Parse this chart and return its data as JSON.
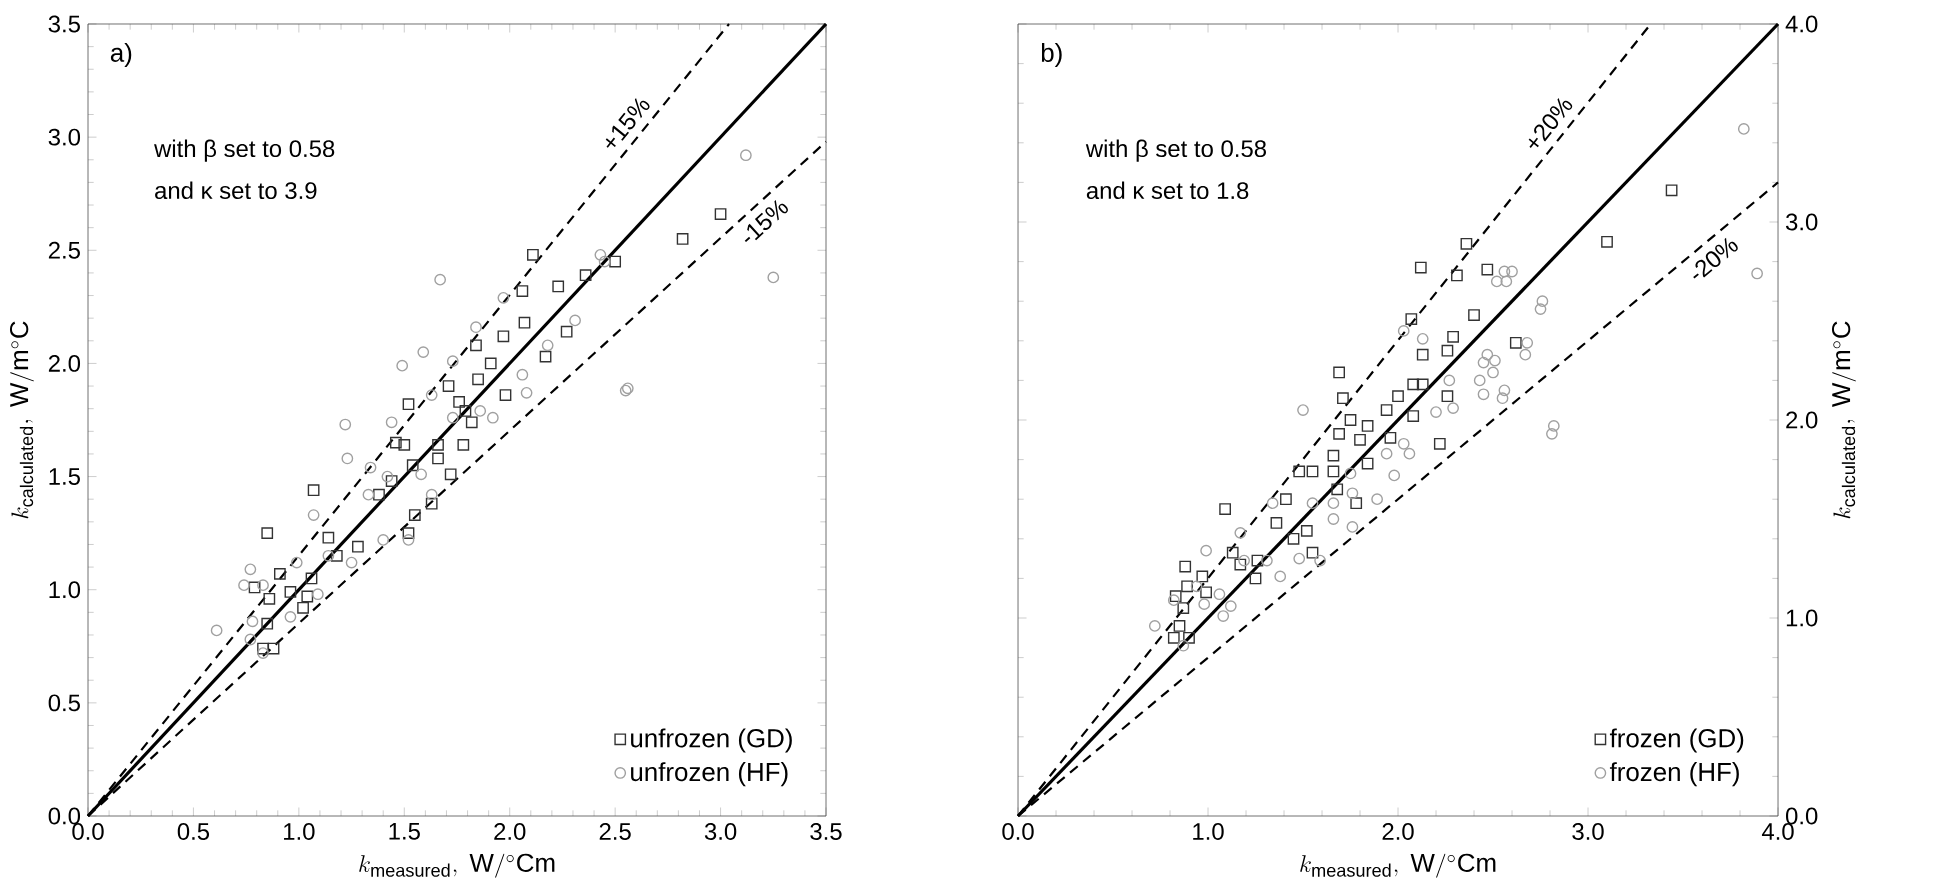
{
  "chart_data": [
    {
      "type": "scatter",
      "xlabel": "k_{\\mathrm{measured}}\\mathrm{,\\ W/^{\\circ}Cm}",
      "ylabel": "k_{\\mathrm{calculated}}\\mathrm{,\\ W/m^{\\circ}C}",
      "annotations": [
        "a)",
        "with β set to 0.58",
        "and κ set to 3.9",
        "+15%",
        "-15%"
      ],
      "xlim": [
        0,
        3.5
      ],
      "ylim": [
        0,
        3.5
      ],
      "xticks": [
        {
          "value": 0,
          "label": "0.0"
        },
        {
          "value": 0.5,
          "label": "0.5"
        },
        {
          "value": 1,
          "label": "1.0"
        },
        {
          "value": 1.5,
          "label": "1.5"
        },
        {
          "value": 2,
          "label": "2.0"
        },
        {
          "value": 2.5,
          "label": "2.5"
        },
        {
          "value": 3,
          "label": "3.0"
        },
        {
          "value": 3.5,
          "label": "3.5"
        }
      ],
      "yticks": [
        {
          "value": 0,
          "label": "0.0"
        },
        {
          "value": 0.5,
          "label": "0.5"
        },
        {
          "value": 1,
          "label": "1.0"
        },
        {
          "value": 1.5,
          "label": "1.5"
        },
        {
          "value": 2,
          "label": "2.0"
        },
        {
          "value": 2.5,
          "label": "2.5"
        },
        {
          "value": 3,
          "label": "3.0"
        },
        {
          "value": 3.5,
          "label": "3.5"
        }
      ],
      "legend": "bottom right",
      "series": [
        {
          "type": "line",
          "color": "#000000",
          "line_style": "solid",
          "marker": "none",
          "x": [
            0,
            3.5
          ],
          "values": [
            0,
            3.5
          ]
        },
        {
          "type": "line",
          "color": "#000000",
          "line_style": "dashed",
          "marker": "none",
          "x": [
            0,
            3.04
          ],
          "values": [
            0,
            3.5
          ]
        },
        {
          "type": "line",
          "color": "#000000",
          "line_style": "dashed",
          "marker": "none",
          "x": [
            0,
            3.5
          ],
          "values": [
            0,
            2.98
          ]
        },
        {
          "name": "unfrozen (GD)",
          "marker": "square",
          "color": "#333333",
          "x": [
            2.11,
            2.06,
            2.23,
            2.36,
            2.07,
            1.97,
            2.27,
            2.17,
            1.84,
            1.91,
            1.85,
            1.98,
            1.71,
            1.76,
            1.79,
            1.82,
            1.52,
            1.46,
            1.5,
            1.66,
            1.78,
            1.54,
            1.66,
            1.72,
            1.07,
            1.38,
            1.44,
            1.55,
            1.63,
            1.52,
            0.85,
            1.14,
            1.28,
            1.18,
            1.06,
            0.91,
            0.79,
            0.96,
            0.86,
            1.04,
            1.02,
            0.85,
            0.88,
            0.83,
            2.82,
            3.0,
            2.5
          ],
          "values": [
            2.48,
            2.32,
            2.34,
            2.39,
            2.18,
            2.12,
            2.14,
            2.03,
            2.08,
            2.0,
            1.93,
            1.86,
            1.9,
            1.83,
            1.79,
            1.74,
            1.82,
            1.65,
            1.64,
            1.64,
            1.64,
            1.55,
            1.58,
            1.51,
            1.44,
            1.42,
            1.48,
            1.33,
            1.38,
            1.25,
            1.25,
            1.23,
            1.19,
            1.15,
            1.05,
            1.07,
            1.01,
            0.99,
            0.96,
            0.97,
            0.92,
            0.85,
            0.74,
            0.74,
            2.55,
            2.66,
            2.45
          ]
        },
        {
          "name": "unfrozen (HF)",
          "marker": "circle",
          "color": "#a0a0a0",
          "x": [
            1.67,
            2.43,
            1.97,
            1.84,
            1.59,
            1.49,
            1.73,
            1.63,
            1.44,
            1.22,
            1.23,
            1.73,
            1.92,
            2.06,
            2.08,
            2.31,
            2.56,
            1.34,
            1.42,
            1.33,
            1.58,
            1.63,
            1.07,
            1.4,
            1.52,
            1.25,
            0.77,
            0.99,
            0.74,
            0.83,
            1.09,
            0.61,
            0.78,
            0.96,
            0.77,
            0.83,
            1.14,
            1.86,
            2.18,
            2.55,
            3.12,
            3.25,
            2.45
          ],
          "values": [
            2.37,
            2.48,
            2.29,
            2.16,
            2.05,
            1.99,
            2.01,
            1.86,
            1.74,
            1.73,
            1.58,
            1.76,
            1.76,
            1.95,
            1.87,
            2.19,
            1.89,
            1.54,
            1.5,
            1.42,
            1.51,
            1.42,
            1.33,
            1.22,
            1.22,
            1.12,
            1.09,
            1.12,
            1.02,
            1.02,
            0.98,
            0.82,
            0.86,
            0.88,
            0.78,
            0.72,
            1.15,
            1.79,
            2.08,
            1.88,
            2.92,
            2.38,
            2.45
          ]
        }
      ]
    },
    {
      "type": "scatter",
      "xlabel": "k_{\\mathrm{measured}}\\mathrm{,\\ W/^{\\circ}Cm}",
      "ylabel": "k_{\\mathrm{calculated}}\\mathrm{,\\ W/m^{\\circ}C}",
      "annotations": [
        "b)",
        "with β set to 0.58",
        "and κ set to 1.8",
        "+20%",
        "-20%"
      ],
      "xlim": [
        0,
        4
      ],
      "ylim": [
        0,
        4
      ],
      "xticks": [
        {
          "value": 0,
          "label": "0.0"
        },
        {
          "value": 1,
          "label": "1.0"
        },
        {
          "value": 2,
          "label": "2.0"
        },
        {
          "value": 3,
          "label": "3.0"
        },
        {
          "value": 4,
          "label": "4.0"
        }
      ],
      "yticks": [
        {
          "value": 0,
          "label": "0.0"
        },
        {
          "value": 1,
          "label": "1.0"
        },
        {
          "value": 2,
          "label": "2.0"
        },
        {
          "value": 3,
          "label": "3.0"
        },
        {
          "value": 4,
          "label": "4.0"
        }
      ],
      "legend": "bottom right",
      "series": [
        {
          "type": "line",
          "color": "#000000",
          "line_style": "solid",
          "marker": "none",
          "x": [
            0,
            4
          ],
          "values": [
            0,
            4
          ]
        },
        {
          "type": "line",
          "color": "#000000",
          "line_style": "dashed",
          "marker": "none",
          "x": [
            0,
            3.33
          ],
          "values": [
            0,
            4
          ]
        },
        {
          "type": "line",
          "color": "#000000",
          "line_style": "dashed",
          "marker": "none",
          "x": [
            0,
            4
          ],
          "values": [
            0,
            3.2
          ]
        },
        {
          "name": "frozen (GD)",
          "marker": "square",
          "color": "#333333",
          "x": [
            2.36,
            2.12,
            2.31,
            2.47,
            2.07,
            2.4,
            2.29,
            2.62,
            2.13,
            2.26,
            1.69,
            2.08,
            2.13,
            2.26,
            2.0,
            1.71,
            1.94,
            1.75,
            2.08,
            1.84,
            1.69,
            1.8,
            1.96,
            2.22,
            1.66,
            1.84,
            1.48,
            1.55,
            1.66,
            1.68,
            1.41,
            1.78,
            1.09,
            1.36,
            1.52,
            1.45,
            1.55,
            1.13,
            1.26,
            1.17,
            1.25,
            0.88,
            0.97,
            0.89,
            0.99,
            0.83,
            0.87,
            0.85,
            0.82,
            0.9,
            3.44,
            3.1
          ],
          "values": [
            2.89,
            2.77,
            2.73,
            2.76,
            2.51,
            2.53,
            2.42,
            2.39,
            2.33,
            2.35,
            2.24,
            2.18,
            2.18,
            2.12,
            2.12,
            2.11,
            2.05,
            2.0,
            2.02,
            1.97,
            1.93,
            1.9,
            1.91,
            1.88,
            1.82,
            1.78,
            1.74,
            1.74,
            1.74,
            1.65,
            1.6,
            1.58,
            1.55,
            1.48,
            1.44,
            1.4,
            1.33,
            1.33,
            1.29,
            1.27,
            1.2,
            1.26,
            1.21,
            1.16,
            1.13,
            1.11,
            1.05,
            0.96,
            0.9,
            0.9,
            3.16,
            2.9
          ]
        },
        {
          "name": "frozen (HF)",
          "marker": "circle",
          "color": "#a0a0a0",
          "x": [
            2.57,
            2.52,
            2.75,
            2.03,
            2.13,
            2.67,
            2.45,
            2.5,
            2.43,
            2.45,
            2.55,
            2.27,
            2.29,
            2.2,
            1.5,
            2.81,
            2.03,
            1.94,
            2.06,
            1.75,
            1.98,
            1.89,
            1.76,
            1.66,
            1.66,
            1.76,
            1.55,
            1.34,
            1.17,
            1.48,
            1.59,
            1.38,
            1.31,
            1.19,
            0.99,
            1.06,
            1.12,
            1.08,
            0.94,
            0.82,
            0.72,
            0.87,
            0.98,
            3.82,
            3.89,
            2.76,
            2.82,
            2.56,
            2.6,
            2.68,
            2.47,
            2.51,
            2.56
          ],
          "values": [
            2.7,
            2.7,
            2.56,
            2.45,
            2.41,
            2.33,
            2.29,
            2.24,
            2.2,
            2.13,
            2.11,
            2.2,
            2.06,
            2.04,
            2.05,
            1.93,
            1.88,
            1.83,
            1.83,
            1.73,
            1.72,
            1.6,
            1.63,
            1.58,
            1.5,
            1.46,
            1.58,
            1.58,
            1.43,
            1.3,
            1.29,
            1.21,
            1.29,
            1.29,
            1.34,
            1.12,
            1.06,
            1.01,
            1.16,
            1.09,
            0.96,
            0.86,
            1.07,
            3.47,
            2.74,
            2.6,
            1.97,
            2.75,
            2.75,
            2.39,
            2.33,
            2.3,
            2.15
          ]
        }
      ]
    }
  ]
}
